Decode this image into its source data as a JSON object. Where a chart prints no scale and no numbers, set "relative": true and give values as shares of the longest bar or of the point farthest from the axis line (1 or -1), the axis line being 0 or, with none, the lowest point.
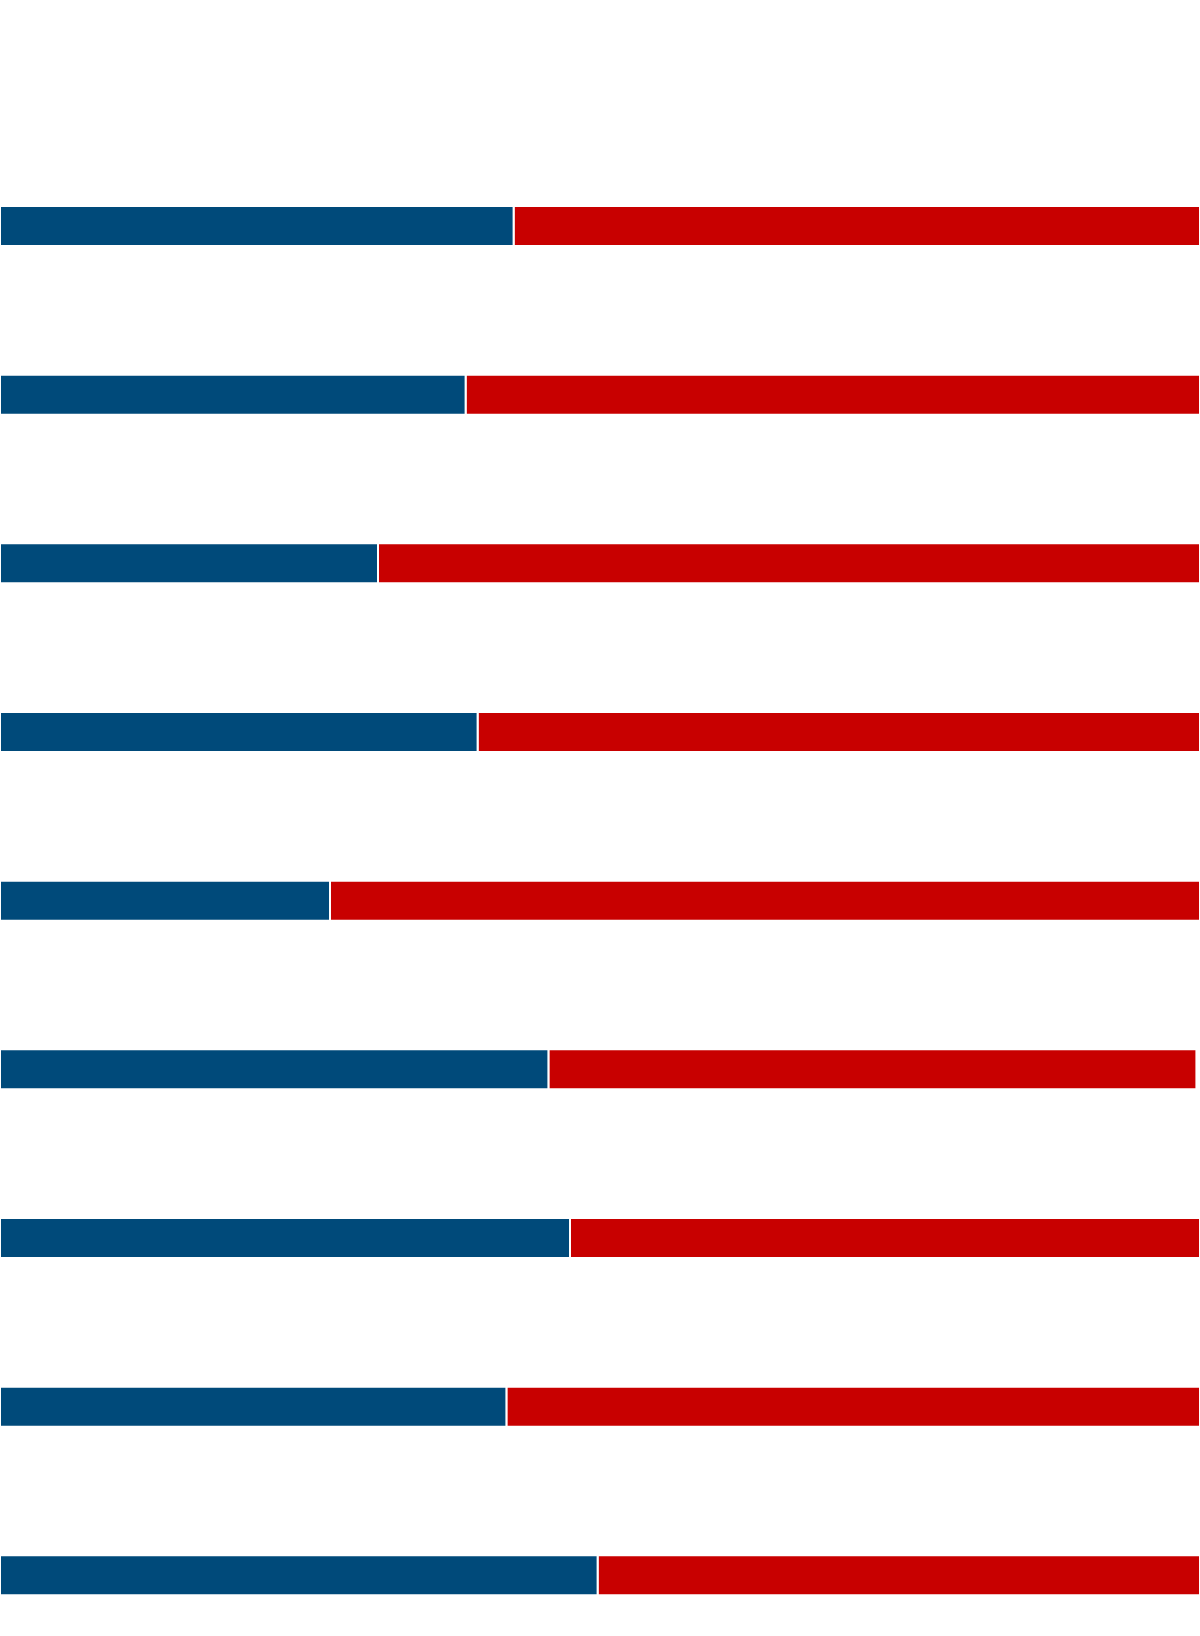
{
  "chart_data": {
    "type": "bar",
    "orientation": "horizontal",
    "stacked": true,
    "relative": true,
    "categories": [
      null,
      null,
      null,
      null,
      null,
      null,
      null,
      null,
      null
    ],
    "series": [
      {
        "color": "#004a7a",
        "values": [
          0.428,
          0.388,
          0.315,
          0.398,
          0.275,
          0.457,
          0.475,
          0.422,
          0.498
        ]
      },
      {
        "color": "#c80000",
        "values": [
          0.572,
          0.612,
          0.685,
          0.602,
          0.725,
          0.54,
          0.525,
          0.578,
          0.502
        ]
      }
    ]
  }
}
